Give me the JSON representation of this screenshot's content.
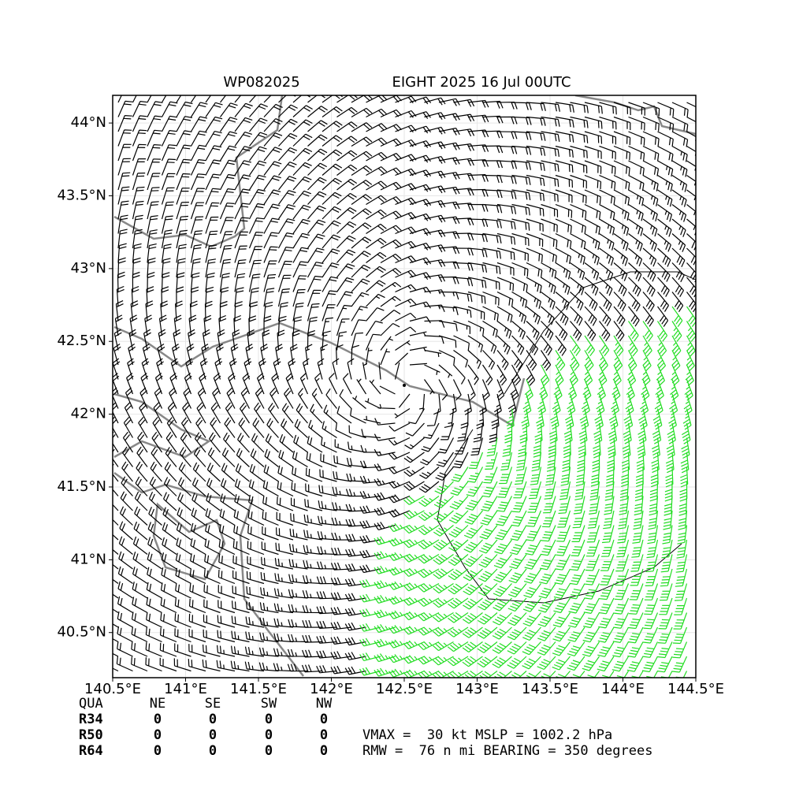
{
  "header": {
    "storm_id": "WP082025",
    "title": "EIGHT 2025 16 Jul 00UTC"
  },
  "map": {
    "xlim": [
      140.5,
      144.5
    ],
    "ylim": [
      40.19,
      44.19
    ],
    "xticks": [
      {
        "value": 140.5,
        "label": "140.5°E"
      },
      {
        "value": 141,
        "label": "141°E"
      },
      {
        "value": 141.5,
        "label": "141.5°E"
      },
      {
        "value": 142,
        "label": "142°E"
      },
      {
        "value": 142.5,
        "label": "142.5°E"
      },
      {
        "value": 143,
        "label": "143°E"
      },
      {
        "value": 143.5,
        "label": "143.5°E"
      },
      {
        "value": 144,
        "label": "144°E"
      },
      {
        "value": 144.5,
        "label": "144.5°E"
      }
    ],
    "yticks": [
      {
        "value": 40.5,
        "label": "40.5°N"
      },
      {
        "value": 41,
        "label": "41°N"
      },
      {
        "value": 41.5,
        "label": "41.5°N"
      },
      {
        "value": 42,
        "label": "42°N"
      },
      {
        "value": 42.5,
        "label": "42.5°N"
      },
      {
        "value": 43,
        "label": "43°N"
      },
      {
        "value": 43.5,
        "label": "43.5°N"
      },
      {
        "value": 44,
        "label": "44°N"
      }
    ],
    "grid": true
  },
  "table": {
    "columns": [
      "QUA",
      "NE",
      "SE",
      "SW",
      "NW"
    ],
    "rows": [
      [
        "R34",
        0,
        0,
        0,
        0
      ],
      [
        "R50",
        0,
        0,
        0,
        0
      ],
      [
        "R64",
        0,
        0,
        0,
        0
      ]
    ]
  },
  "info": [
    "VMAX =  30 kt MSLP = 1002.2 hPa",
    "RMW =  76 n mi BEARING = 350 degrees"
  ]
}
